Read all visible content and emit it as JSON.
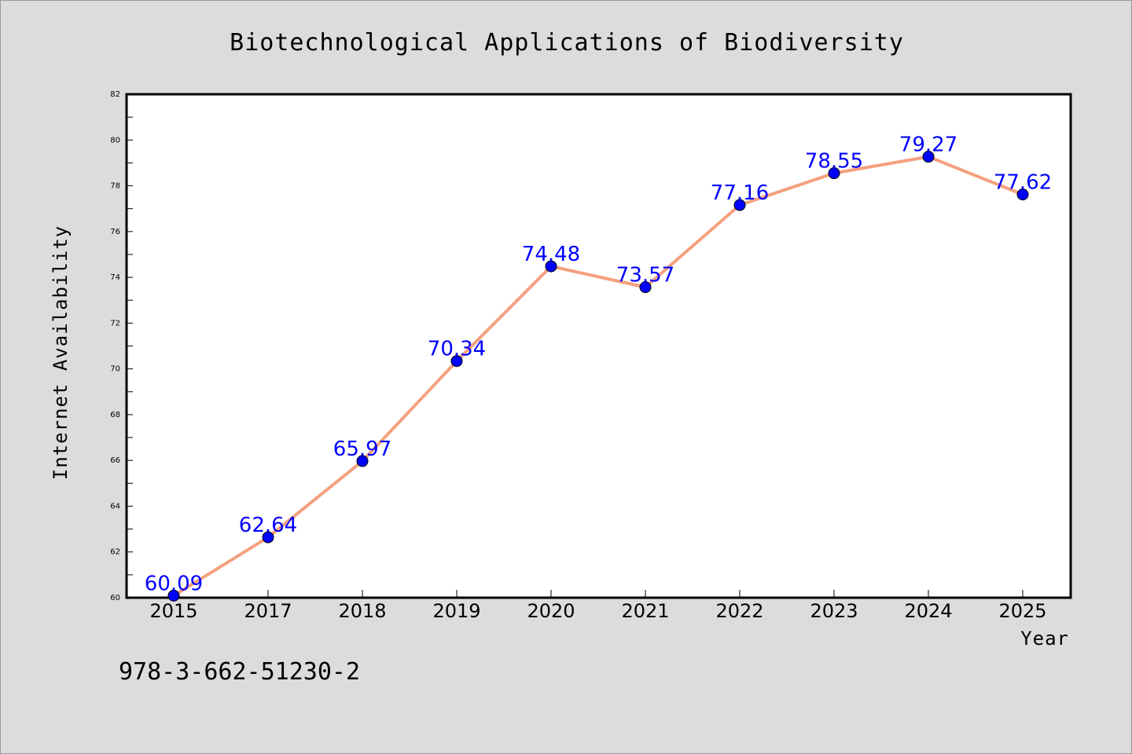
{
  "chart_data": {
    "type": "line",
    "title": "Biotechnological Applications of Biodiversity",
    "xlabel": "Year",
    "ylabel": "Internet Availability",
    "categories": [
      "2015",
      "2017",
      "2018",
      "2019",
      "2020",
      "2021",
      "2022",
      "2023",
      "2024",
      "2025"
    ],
    "values": [
      60.09,
      62.64,
      65.97,
      70.34,
      74.48,
      73.57,
      77.16,
      78.55,
      79.27,
      77.62
    ],
    "data_labels": [
      "60.09",
      "62.64",
      "65.97",
      "70.34",
      "74.48",
      "73.57",
      "77.16",
      "78.55",
      "79.27",
      "77.62"
    ],
    "y_tick_labels": [
      "60",
      "62",
      "64",
      "66",
      "68",
      "70",
      "72",
      "74",
      "76",
      "78",
      "80",
      "82"
    ],
    "ylim": [
      60,
      82
    ],
    "grid": false,
    "legend": "none",
    "line_color": "#f4a07f",
    "marker_color": "#0000ff",
    "label_color": "#0000ff"
  },
  "footer": {
    "isbn": "978-3-662-51230-2"
  }
}
